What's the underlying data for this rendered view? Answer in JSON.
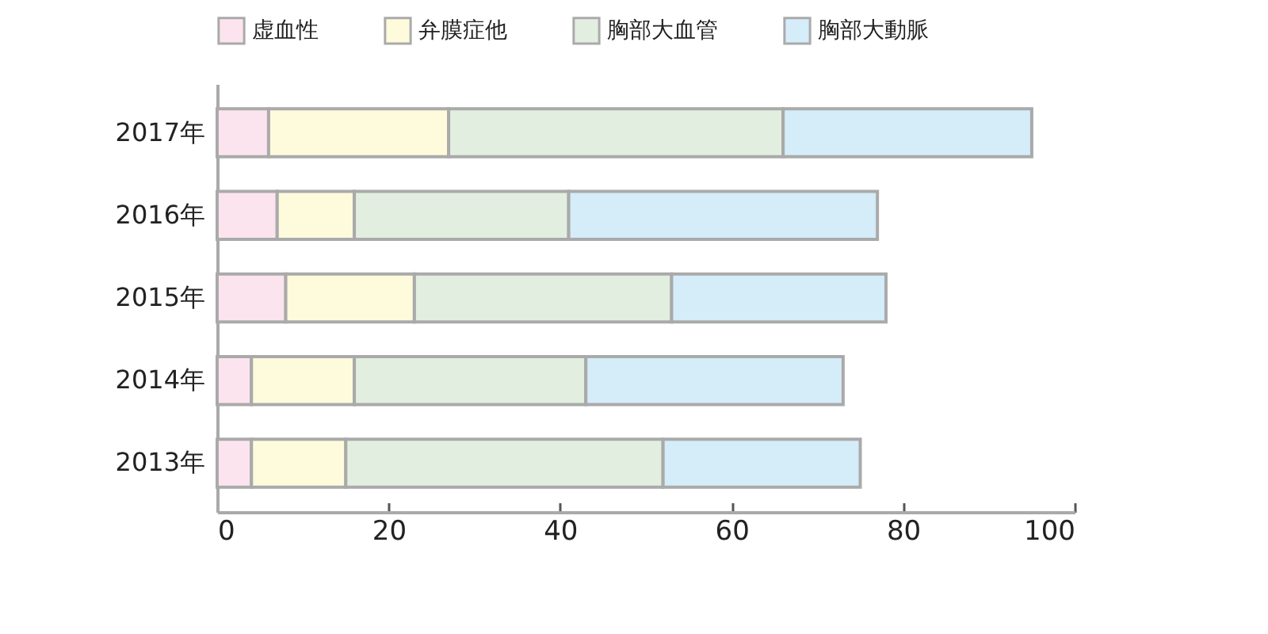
{
  "chart_data": {
    "type": "bar",
    "orientation": "horizontal",
    "stacked": true,
    "categories": [
      "2017年",
      "2016年",
      "2015年",
      "2014年",
      "2013年"
    ],
    "series": [
      {
        "name": "虚血性",
        "color": "#fce4ef",
        "values": [
          6,
          7,
          8,
          4,
          4
        ]
      },
      {
        "name": "弁膜症他",
        "color": "#fefbdc",
        "values": [
          21,
          9,
          15,
          12,
          11
        ]
      },
      {
        "name": "胸部大血管",
        "color": "#e2efe0",
        "values": [
          39,
          25,
          30,
          27,
          37
        ]
      },
      {
        "name": "胸部大動脈",
        "color": "#d5ecf9",
        "values": [
          29,
          36,
          25,
          30,
          23
        ]
      }
    ],
    "xlim": [
      0,
      100
    ],
    "xticks": [
      0,
      20,
      40,
      60,
      80,
      100
    ],
    "grid": false,
    "legend": "top"
  }
}
